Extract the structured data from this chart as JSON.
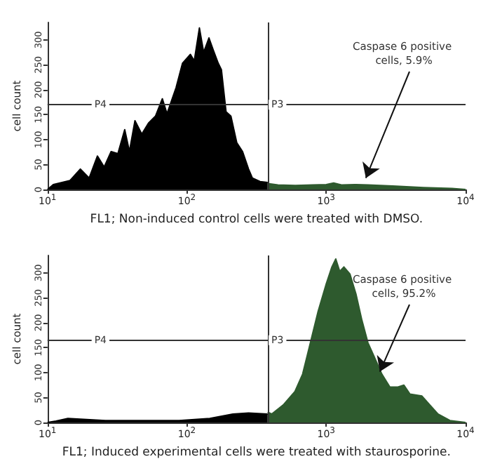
{
  "chart_data": [
    {
      "type": "area",
      "xlabel": "FL1; Non-induced control cells were treated with DMSO.",
      "ylabel": "cell count",
      "log": "x",
      "grid": false,
      "marker": "none",
      "xlim": [
        10,
        10000
      ],
      "ylim": [
        0,
        335
      ],
      "xticks": [
        {
          "value": 10,
          "label": "10$^{1}$"
        },
        {
          "value": 100,
          "label": "10$^{2}$"
        },
        {
          "value": 1000,
          "label": "10$^{3}$"
        },
        {
          "value": 10000,
          "label": "10$^{4}$"
        }
      ],
      "yticks": [
        0,
        50,
        100,
        150,
        200,
        250,
        300
      ],
      "series": [
        {
          "color": "#000000",
          "x": [
            10,
            11,
            14.5,
            17.2,
            19.9,
            22.8,
            25.5,
            28.6,
            32,
            35.8,
            38.7,
            42.4,
            47.5,
            53,
            59.5,
            66.7,
            72,
            83.6,
            93,
            106,
            113,
            123,
            132,
            144,
            155,
            168,
            177,
            191,
            207,
            228,
            251,
            277,
            295,
            335,
            380
          ],
          "values": [
            0,
            10,
            18,
            41,
            23,
            67,
            45,
            76,
            72,
            120,
            76,
            138,
            111,
            133,
            147,
            182,
            152,
            204,
            253,
            271,
            258,
            324,
            275,
            304,
            279,
            253,
            240,
            156,
            147,
            94,
            76,
            41,
            23,
            16,
            14
          ]
        },
        {
          "color": "#2e5a2e",
          "x": [
            380,
            450,
            600,
            800,
            1000,
            1130,
            1300,
            1600,
            2000,
            3000,
            5000,
            8000,
            10000
          ],
          "values": [
            12,
            9,
            8,
            9,
            10,
            13,
            9,
            10,
            9,
            7,
            4,
            2,
            0
          ]
        }
      ],
      "ref_lines": [
        {
          "axis": "x",
          "value": 380
        },
        {
          "axis": "y",
          "value": 170
        }
      ],
      "annotations": [
        {
          "text": "P4",
          "x": 24,
          "y": 170
        },
        {
          "text": "P3",
          "x": 447,
          "y": 170
        },
        {
          "text": "Caspase 6 positive cells, 5.9%",
          "x": 1925,
          "y": 23
        }
      ]
    },
    {
      "type": "area",
      "xlabel": "FL1; Induced experimental cells were treated with staurosporine.",
      "ylabel": "cell count",
      "log": "x",
      "grid": false,
      "marker": "none",
      "xlim": [
        10,
        10000
      ],
      "ylim": [
        0,
        335
      ],
      "xticks": [
        {
          "value": 10,
          "label": "10$^{1}$"
        },
        {
          "value": 100,
          "label": "10$^{2}$"
        },
        {
          "value": 1000,
          "label": "10$^{3}$"
        },
        {
          "value": 10000,
          "label": "10$^{4}$"
        }
      ],
      "yticks": [
        0,
        50,
        100,
        150,
        200,
        250,
        300
      ],
      "series": [
        {
          "color": "#000000",
          "x": [
            10,
            11.5,
            14,
            26,
            88,
            146,
            214,
            277,
            380
          ],
          "values": [
            0,
            3,
            8,
            4,
            4,
            8,
            17,
            19,
            17
          ]
        },
        {
          "color": "#2e5a2e",
          "x": [
            380,
            406,
            491,
            596,
            677,
            770,
            875,
            995,
            1098,
            1171,
            1251,
            1339,
            1479,
            1634,
            1804,
            1992,
            2200,
            2508,
            2864,
            3270,
            3611,
            3990,
            4864,
            5548,
            6337,
            7726,
            10000
          ],
          "values": [
            21,
            17,
            35,
            62,
            97,
            160,
            223,
            276,
            312,
            328,
            303,
            312,
            298,
            258,
            205,
            160,
            133,
            97,
            71,
            71,
            75,
            57,
            53,
            35,
            17,
            4,
            0
          ]
        }
      ],
      "ref_lines": [
        {
          "axis": "x",
          "value": 380
        },
        {
          "axis": "y",
          "value": 165
        }
      ],
      "annotations": [
        {
          "text": "P4",
          "x": 24,
          "y": 165
        },
        {
          "text": "P3",
          "x": 447,
          "y": 165
        },
        {
          "text": "Caspase 6 positive cells, 95.2%",
          "x": 2426,
          "y": 102
        }
      ]
    }
  ]
}
